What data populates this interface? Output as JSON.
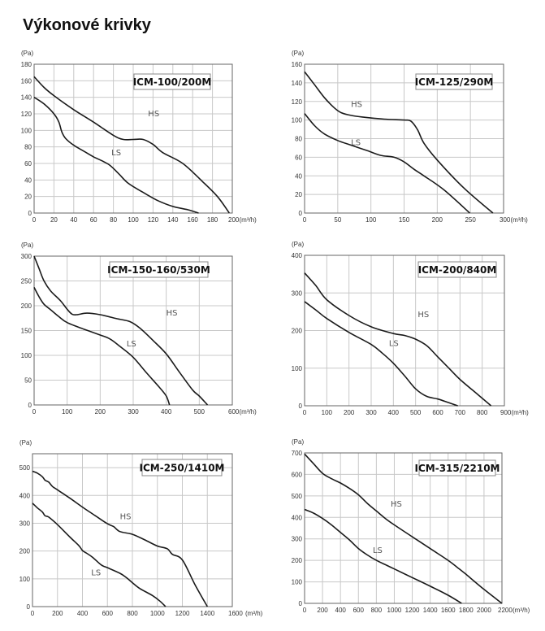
{
  "page": {
    "title": "Výkonové krivky"
  },
  "chart_data": [
    {
      "type": "line",
      "title": "ICM-100/200M",
      "ylabel": "(Pa)",
      "xunit": "(m³/h)",
      "xlim": [
        0,
        200
      ],
      "ylim": [
        0,
        180
      ],
      "xticks": [
        "0",
        "20",
        "40",
        "60",
        "80",
        "100",
        "120",
        "140",
        "160",
        "180",
        "200"
      ],
      "yticks": [
        "0",
        "20",
        "40",
        "60",
        "80",
        "100",
        "120",
        "140",
        "160",
        "180"
      ],
      "xtickvals": [
        0,
        20,
        40,
        60,
        80,
        100,
        120,
        140,
        160,
        180,
        200
      ],
      "ytickvals": [
        0,
        20,
        40,
        60,
        80,
        100,
        120,
        140,
        160,
        180
      ],
      "grid": true,
      "series": [
        {
          "name": "HS",
          "x": [
            0,
            10,
            20,
            40,
            60,
            80,
            90,
            100,
            110,
            120,
            130,
            150,
            170,
            185,
            197
          ],
          "y": [
            165,
            152,
            142,
            125,
            110,
            94,
            89,
            89,
            89,
            83,
            73,
            60,
            38,
            20,
            0
          ]
        },
        {
          "name": "LS",
          "x": [
            0,
            10,
            20,
            25,
            28,
            32,
            40,
            50,
            60,
            75,
            85,
            95,
            110,
            125,
            140,
            155,
            166
          ],
          "y": [
            140,
            132,
            120,
            110,
            98,
            90,
            82,
            75,
            68,
            59,
            48,
            36,
            25,
            15,
            8,
            4,
            0
          ]
        }
      ]
    },
    {
      "type": "line",
      "title": "ICM-125/290M",
      "ylabel": "(Pa)",
      "xunit": "(m³/h)",
      "xlim": [
        0,
        300
      ],
      "ylim": [
        0,
        160
      ],
      "xticks": [
        "0",
        "50",
        "100",
        "150",
        "200",
        "250",
        "300"
      ],
      "yticks": [
        "0",
        "20",
        "40",
        "60",
        "80",
        "100",
        "120",
        "140",
        "160"
      ],
      "xtickvals": [
        0,
        50,
        100,
        150,
        200,
        250,
        300
      ],
      "ytickvals": [
        0,
        20,
        40,
        60,
        80,
        100,
        120,
        140,
        160
      ],
      "grid": true,
      "series": [
        {
          "name": "HS",
          "x": [
            0,
            15,
            30,
            45,
            55,
            70,
            90,
            120,
            150,
            160,
            170,
            180,
            200,
            240,
            284
          ],
          "y": [
            152,
            138,
            124,
            113,
            108,
            105,
            103,
            101,
            100,
            99,
            90,
            75,
            57,
            27,
            0
          ]
        },
        {
          "name": "LS",
          "x": [
            0,
            15,
            30,
            50,
            70,
            95,
            115,
            135,
            150,
            165,
            180,
            210,
            249
          ],
          "y": [
            107,
            94,
            85,
            78,
            73,
            67,
            62,
            60,
            55,
            47,
            40,
            25,
            0
          ]
        }
      ]
    },
    {
      "type": "line",
      "title": "ICM-150-160/530M",
      "ylabel": "(Pa)",
      "xunit": "(m³/h)",
      "xlim": [
        0,
        600
      ],
      "ylim": [
        0,
        300
      ],
      "xticks": [
        "0",
        "100",
        "200",
        "300",
        "400",
        "500",
        "600"
      ],
      "yticks": [
        "0",
        "50",
        "100",
        "150",
        "200",
        "250",
        "300"
      ],
      "xtickvals": [
        0,
        100,
        200,
        300,
        400,
        500,
        600
      ],
      "ytickvals": [
        0,
        50,
        100,
        150,
        200,
        250,
        300
      ],
      "grid": true,
      "series": [
        {
          "name": "HS",
          "x": [
            0,
            15,
            30,
            50,
            80,
            100,
            115,
            130,
            160,
            200,
            250,
            290,
            320,
            360,
            400,
            440,
            480,
            500,
            525
          ],
          "y": [
            300,
            275,
            250,
            230,
            210,
            193,
            183,
            182,
            185,
            182,
            174,
            168,
            155,
            130,
            103,
            66,
            30,
            18,
            0
          ]
        },
        {
          "name": "LS",
          "x": [
            0,
            15,
            30,
            50,
            75,
            100,
            150,
            200,
            230,
            260,
            300,
            340,
            380,
            400,
            410
          ],
          "y": [
            237,
            218,
            203,
            192,
            178,
            166,
            153,
            141,
            133,
            118,
            96,
            65,
            35,
            18,
            0
          ]
        }
      ]
    },
    {
      "type": "line",
      "title": "ICM-200/840M",
      "ylabel": "(Pa)",
      "xunit": "(m³/h)",
      "xlim": [
        0,
        900
      ],
      "ylim": [
        0,
        400
      ],
      "xticks": [
        "0",
        "100",
        "200",
        "300",
        "400",
        "500",
        "600",
        "700",
        "800",
        "900"
      ],
      "yticks": [
        "0",
        "100",
        "200",
        "300",
        "400"
      ],
      "xtickvals": [
        0,
        100,
        200,
        300,
        400,
        500,
        600,
        700,
        800,
        900
      ],
      "ytickvals": [
        0,
        100,
        200,
        300,
        400
      ],
      "grid": true,
      "series": [
        {
          "name": "HS",
          "x": [
            0,
            50,
            100,
            200,
            300,
            400,
            450,
            500,
            550,
            600,
            650,
            700,
            780,
            840
          ],
          "y": [
            353,
            320,
            282,
            240,
            210,
            192,
            187,
            177,
            160,
            130,
            100,
            70,
            30,
            0
          ]
        },
        {
          "name": "LS",
          "x": [
            0,
            50,
            100,
            200,
            300,
            350,
            400,
            450,
            500,
            550,
            600,
            650,
            690
          ],
          "y": [
            277,
            255,
            232,
            195,
            163,
            140,
            113,
            80,
            45,
            25,
            18,
            8,
            0
          ]
        }
      ]
    },
    {
      "type": "line",
      "title": "ICM-250/1410M",
      "ylabel": "(Pa)",
      "xunit": "(m³/h)",
      "xunit_sep": " ",
      "xlim": [
        0,
        1600
      ],
      "ylim": [
        0,
        550
      ],
      "xticks": [
        "0",
        "200",
        "400",
        "600",
        "800",
        "1000",
        "1200",
        "1400",
        "1600"
      ],
      "yticks": [
        "0",
        "100",
        "200",
        "300",
        "400",
        "500"
      ],
      "xtickvals": [
        0,
        200,
        400,
        600,
        800,
        1000,
        1200,
        1400,
        1600
      ],
      "ytickvals": [
        0,
        100,
        200,
        300,
        400,
        500
      ],
      "grid": true,
      "series": [
        {
          "name": "HS",
          "x": [
            0,
            40,
            80,
            100,
            130,
            160,
            200,
            300,
            400,
            500,
            600,
            650,
            700,
            800,
            900,
            1000,
            1080,
            1120,
            1200,
            1300,
            1400
          ],
          "y": [
            487,
            480,
            467,
            455,
            448,
            432,
            420,
            390,
            358,
            328,
            298,
            288,
            270,
            260,
            240,
            218,
            208,
            188,
            168,
            80,
            0
          ]
        },
        {
          "name": "LS",
          "x": [
            0,
            40,
            80,
            100,
            130,
            200,
            300,
            370,
            400,
            430,
            480,
            550,
            600,
            700,
            750,
            800,
            860,
            960,
            1020,
            1066
          ],
          "y": [
            372,
            355,
            340,
            327,
            322,
            295,
            250,
            220,
            202,
            193,
            178,
            150,
            140,
            120,
            105,
            86,
            65,
            40,
            20,
            0
          ]
        }
      ]
    },
    {
      "type": "line",
      "title": "ICM-315/2210M",
      "ylabel": "(Pa)",
      "xunit": "(m³/h)",
      "xlim": [
        0,
        2200
      ],
      "ylim": [
        0,
        700
      ],
      "xticks": [
        "0",
        "200",
        "400",
        "600",
        "800",
        "1000",
        "1200",
        "1400",
        "1600",
        "1800",
        "2000",
        "2200"
      ],
      "yticks": [
        "0",
        "100",
        "200",
        "300",
        "400",
        "500",
        "600",
        "700"
      ],
      "xtickvals": [
        0,
        200,
        400,
        600,
        800,
        1000,
        1200,
        1400,
        1600,
        1800,
        2000,
        2200
      ],
      "ytickvals": [
        0,
        100,
        200,
        300,
        400,
        500,
        600,
        700
      ],
      "grid": true,
      "series": [
        {
          "name": "HS",
          "x": [
            0,
            100,
            200,
            300,
            400,
            500,
            600,
            700,
            800,
            900,
            1000,
            1200,
            1400,
            1600,
            1700,
            1800,
            2000,
            2200
          ],
          "y": [
            695,
            650,
            605,
            580,
            560,
            535,
            505,
            465,
            430,
            395,
            365,
            310,
            255,
            200,
            168,
            135,
            65,
            0
          ]
        },
        {
          "name": "LS",
          "x": [
            0,
            100,
            200,
            300,
            400,
            500,
            600,
            700,
            800,
            900,
            1000,
            1200,
            1400,
            1600,
            1750
          ],
          "y": [
            437,
            420,
            395,
            365,
            330,
            295,
            255,
            225,
            200,
            180,
            160,
            120,
            80,
            38,
            0
          ]
        }
      ]
    }
  ],
  "colors": {
    "curve": "#1a1a1a",
    "grid": "#c8c8c8",
    "frame": "#666666",
    "label_box_border": "#888888"
  }
}
